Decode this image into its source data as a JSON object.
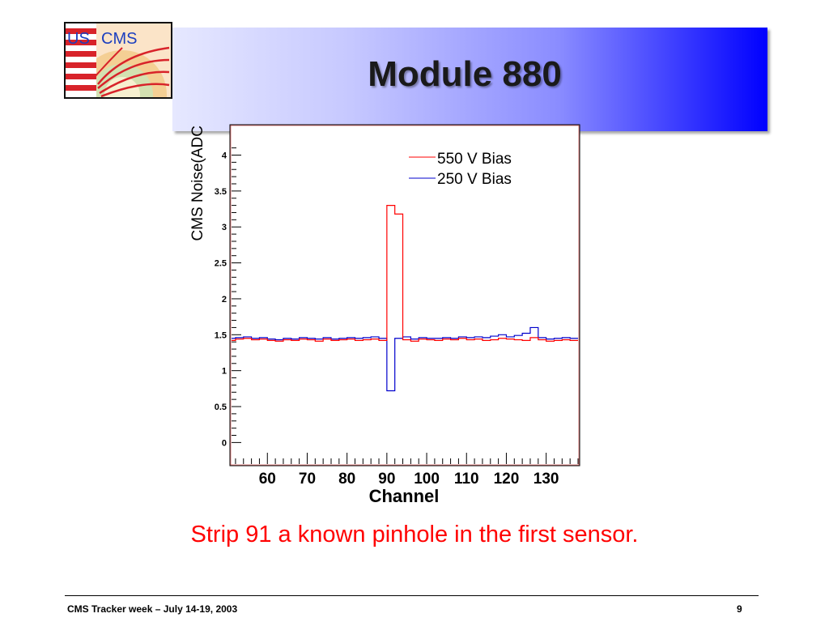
{
  "slide": {
    "title": "Module 880",
    "caption": "Strip 91 a known pinhole in the first sensor.",
    "footer_left": "CMS Tracker week – July 14-19, 2003",
    "page_number": "9",
    "logo": {
      "text_us": "US",
      "text_cms": "CMS"
    }
  },
  "colors": {
    "series_550": "#ff0000",
    "series_250": "#0000cc",
    "caption": "#ff0000"
  },
  "chart_data": {
    "type": "line",
    "title": "",
    "xlabel": "Channel",
    "ylabel": "CMS Noise(ADC",
    "xlim": [
      51,
      138
    ],
    "ylim": [
      -0.3,
      4.4
    ],
    "x_ticks": [
      60,
      70,
      80,
      90,
      100,
      110,
      120,
      130
    ],
    "y_ticks": [
      0,
      0.5,
      1,
      1.5,
      2,
      2.5,
      3,
      3.5,
      4
    ],
    "y_tick_labels": [
      "0",
      "0.5",
      "1",
      "1.5",
      "2",
      "2.5",
      "3",
      "3.5",
      "4"
    ],
    "legend_position": "top-right",
    "series": [
      {
        "name": "550 V Bias",
        "step": true,
        "x": [
          51,
          53,
          55,
          57,
          59,
          61,
          63,
          65,
          67,
          69,
          71,
          73,
          75,
          77,
          79,
          81,
          83,
          85,
          87,
          89,
          91,
          93,
          95,
          97,
          99,
          101,
          103,
          105,
          107,
          109,
          111,
          113,
          115,
          117,
          119,
          121,
          123,
          125,
          127,
          129,
          131,
          133,
          135,
          137
        ],
        "values": [
          1.42,
          1.44,
          1.45,
          1.43,
          1.44,
          1.42,
          1.41,
          1.43,
          1.42,
          1.44,
          1.43,
          1.41,
          1.44,
          1.42,
          1.43,
          1.44,
          1.42,
          1.43,
          1.44,
          1.42,
          3.3,
          3.18,
          1.43,
          1.41,
          1.44,
          1.43,
          1.42,
          1.44,
          1.43,
          1.45,
          1.43,
          1.44,
          1.42,
          1.43,
          1.45,
          1.44,
          1.43,
          1.42,
          1.46,
          1.43,
          1.41,
          1.42,
          1.43,
          1.42
        ]
      },
      {
        "name": "250 V Bias",
        "step": true,
        "x": [
          51,
          53,
          55,
          57,
          59,
          61,
          63,
          65,
          67,
          69,
          71,
          73,
          75,
          77,
          79,
          81,
          83,
          85,
          87,
          89,
          91,
          93,
          95,
          97,
          99,
          101,
          103,
          105,
          107,
          109,
          111,
          113,
          115,
          117,
          119,
          121,
          123,
          125,
          127,
          129,
          131,
          133,
          135,
          137
        ],
        "values": [
          1.45,
          1.46,
          1.47,
          1.45,
          1.46,
          1.44,
          1.43,
          1.45,
          1.44,
          1.46,
          1.45,
          1.44,
          1.46,
          1.44,
          1.45,
          1.46,
          1.45,
          1.46,
          1.47,
          1.45,
          0.72,
          1.45,
          1.47,
          1.44,
          1.46,
          1.45,
          1.45,
          1.46,
          1.45,
          1.47,
          1.46,
          1.47,
          1.46,
          1.48,
          1.5,
          1.47,
          1.49,
          1.52,
          1.6,
          1.46,
          1.44,
          1.45,
          1.46,
          1.45
        ]
      }
    ]
  }
}
